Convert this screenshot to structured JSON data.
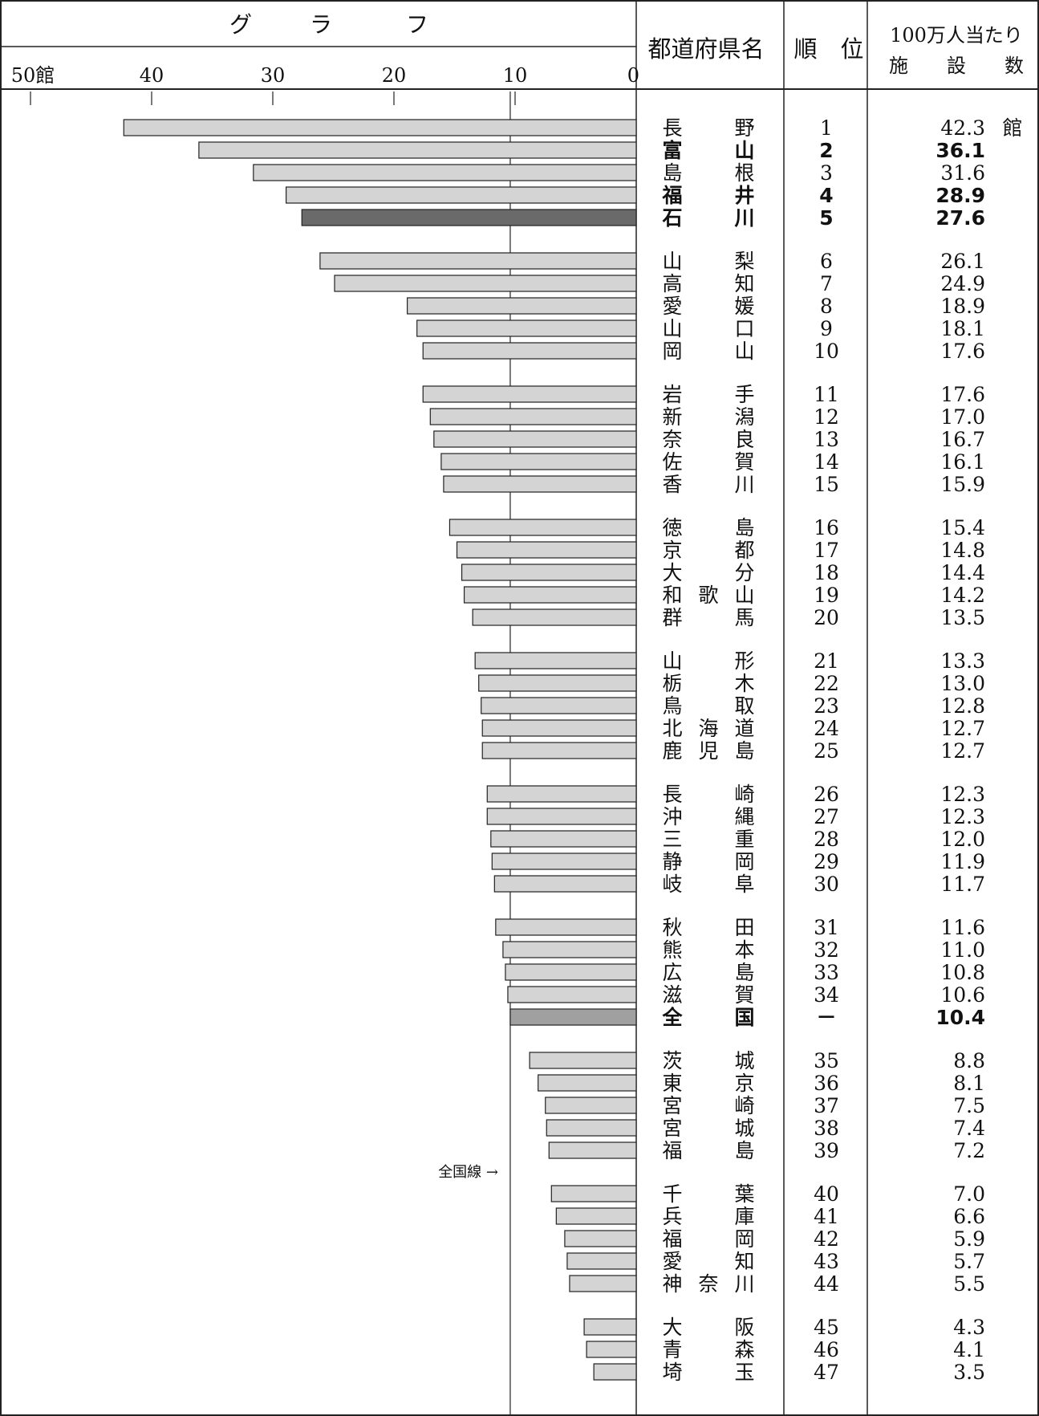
{
  "header": {
    "graph_title": [
      "グ",
      "ラ",
      "フ"
    ],
    "col_pref": "都道府県名",
    "col_rank": "順　位",
    "col_value_line1": "100万人当たり",
    "col_value_line2": "施　　設　　数",
    "unit": "館"
  },
  "chart_data": {
    "type": "bar",
    "orientation": "horizontal",
    "direction": "right-to-left",
    "xlim": [
      0,
      50
    ],
    "ticks": [
      {
        "value": 50,
        "label": "50館"
      },
      {
        "value": 40,
        "label": "40"
      },
      {
        "value": 30,
        "label": "30"
      },
      {
        "value": 20,
        "label": "20"
      },
      {
        "value": 10,
        "label": "10"
      },
      {
        "value": 0,
        "label": "0"
      }
    ],
    "reference_line": {
      "value": 10.4,
      "label": "全国線 →"
    },
    "colors": {
      "bar": "#d4d4d4",
      "highlight": "#6a6a6a",
      "national": "#a0a0a0",
      "border": "#222222"
    },
    "rows": [
      {
        "name": [
          "長",
          "",
          "野"
        ],
        "rank": "1",
        "value": 42.3,
        "value_label": "42.3",
        "bold": false,
        "style": "normal"
      },
      {
        "name": [
          "富",
          "",
          "山"
        ],
        "rank": "2",
        "value": 36.1,
        "value_label": "36.1",
        "bold": true,
        "style": "normal"
      },
      {
        "name": [
          "島",
          "",
          "根"
        ],
        "rank": "3",
        "value": 31.6,
        "value_label": "31.6",
        "bold": false,
        "style": "normal"
      },
      {
        "name": [
          "福",
          "",
          "井"
        ],
        "rank": "4",
        "value": 28.9,
        "value_label": "28.9",
        "bold": true,
        "style": "normal"
      },
      {
        "name": [
          "石",
          "",
          "川"
        ],
        "rank": "5",
        "value": 27.6,
        "value_label": "27.6",
        "bold": true,
        "style": "highlight"
      },
      {
        "name": [
          "山",
          "",
          "梨"
        ],
        "rank": "6",
        "value": 26.1,
        "value_label": "26.1",
        "bold": false,
        "style": "normal"
      },
      {
        "name": [
          "高",
          "",
          "知"
        ],
        "rank": "7",
        "value": 24.9,
        "value_label": "24.9",
        "bold": false,
        "style": "normal"
      },
      {
        "name": [
          "愛",
          "",
          "媛"
        ],
        "rank": "8",
        "value": 18.9,
        "value_label": "18.9",
        "bold": false,
        "style": "normal"
      },
      {
        "name": [
          "山",
          "",
          "口"
        ],
        "rank": "9",
        "value": 18.1,
        "value_label": "18.1",
        "bold": false,
        "style": "normal"
      },
      {
        "name": [
          "岡",
          "",
          "山"
        ],
        "rank": "10",
        "value": 17.6,
        "value_label": "17.6",
        "bold": false,
        "style": "normal"
      },
      {
        "name": [
          "岩",
          "",
          "手"
        ],
        "rank": "11",
        "value": 17.6,
        "value_label": "17.6",
        "bold": false,
        "style": "normal"
      },
      {
        "name": [
          "新",
          "",
          "潟"
        ],
        "rank": "12",
        "value": 17.0,
        "value_label": "17.0",
        "bold": false,
        "style": "normal"
      },
      {
        "name": [
          "奈",
          "",
          "良"
        ],
        "rank": "13",
        "value": 16.7,
        "value_label": "16.7",
        "bold": false,
        "style": "normal"
      },
      {
        "name": [
          "佐",
          "",
          "賀"
        ],
        "rank": "14",
        "value": 16.1,
        "value_label": "16.1",
        "bold": false,
        "style": "normal"
      },
      {
        "name": [
          "香",
          "",
          "川"
        ],
        "rank": "15",
        "value": 15.9,
        "value_label": "15.9",
        "bold": false,
        "style": "normal"
      },
      {
        "name": [
          "徳",
          "",
          "島"
        ],
        "rank": "16",
        "value": 15.4,
        "value_label": "15.4",
        "bold": false,
        "style": "normal"
      },
      {
        "name": [
          "京",
          "",
          "都"
        ],
        "rank": "17",
        "value": 14.8,
        "value_label": "14.8",
        "bold": false,
        "style": "normal"
      },
      {
        "name": [
          "大",
          "",
          "分"
        ],
        "rank": "18",
        "value": 14.4,
        "value_label": "14.4",
        "bold": false,
        "style": "normal"
      },
      {
        "name": [
          "和",
          "歌",
          "山"
        ],
        "rank": "19",
        "value": 14.2,
        "value_label": "14.2",
        "bold": false,
        "style": "normal"
      },
      {
        "name": [
          "群",
          "",
          "馬"
        ],
        "rank": "20",
        "value": 13.5,
        "value_label": "13.5",
        "bold": false,
        "style": "normal"
      },
      {
        "name": [
          "山",
          "",
          "形"
        ],
        "rank": "21",
        "value": 13.3,
        "value_label": "13.3",
        "bold": false,
        "style": "normal"
      },
      {
        "name": [
          "栃",
          "",
          "木"
        ],
        "rank": "22",
        "value": 13.0,
        "value_label": "13.0",
        "bold": false,
        "style": "normal"
      },
      {
        "name": [
          "鳥",
          "",
          "取"
        ],
        "rank": "23",
        "value": 12.8,
        "value_label": "12.8",
        "bold": false,
        "style": "normal"
      },
      {
        "name": [
          "北",
          "海",
          "道"
        ],
        "rank": "24",
        "value": 12.7,
        "value_label": "12.7",
        "bold": false,
        "style": "normal"
      },
      {
        "name": [
          "鹿",
          "児",
          "島"
        ],
        "rank": "25",
        "value": 12.7,
        "value_label": "12.7",
        "bold": false,
        "style": "normal"
      },
      {
        "name": [
          "長",
          "",
          "崎"
        ],
        "rank": "26",
        "value": 12.3,
        "value_label": "12.3",
        "bold": false,
        "style": "normal"
      },
      {
        "name": [
          "沖",
          "",
          "縄"
        ],
        "rank": "27",
        "value": 12.3,
        "value_label": "12.3",
        "bold": false,
        "style": "normal"
      },
      {
        "name": [
          "三",
          "",
          "重"
        ],
        "rank": "28",
        "value": 12.0,
        "value_label": "12.0",
        "bold": false,
        "style": "normal"
      },
      {
        "name": [
          "静",
          "",
          "岡"
        ],
        "rank": "29",
        "value": 11.9,
        "value_label": "11.9",
        "bold": false,
        "style": "normal"
      },
      {
        "name": [
          "岐",
          "",
          "阜"
        ],
        "rank": "30",
        "value": 11.7,
        "value_label": "11.7",
        "bold": false,
        "style": "normal"
      },
      {
        "name": [
          "秋",
          "",
          "田"
        ],
        "rank": "31",
        "value": 11.6,
        "value_label": "11.6",
        "bold": false,
        "style": "normal"
      },
      {
        "name": [
          "熊",
          "",
          "本"
        ],
        "rank": "32",
        "value": 11.0,
        "value_label": "11.0",
        "bold": false,
        "style": "normal"
      },
      {
        "name": [
          "広",
          "",
          "島"
        ],
        "rank": "33",
        "value": 10.8,
        "value_label": "10.8",
        "bold": false,
        "style": "normal"
      },
      {
        "name": [
          "滋",
          "",
          "賀"
        ],
        "rank": "34",
        "value": 10.6,
        "value_label": "10.6",
        "bold": false,
        "style": "normal"
      },
      {
        "name": [
          "全",
          "",
          "国"
        ],
        "rank": "－",
        "value": 10.4,
        "value_label": "10.4",
        "bold": true,
        "style": "national"
      },
      {
        "name": [
          "茨",
          "",
          "城"
        ],
        "rank": "35",
        "value": 8.8,
        "value_label": "8.8",
        "bold": false,
        "style": "normal"
      },
      {
        "name": [
          "東",
          "",
          "京"
        ],
        "rank": "36",
        "value": 8.1,
        "value_label": "8.1",
        "bold": false,
        "style": "normal"
      },
      {
        "name": [
          "宮",
          "",
          "崎"
        ],
        "rank": "37",
        "value": 7.5,
        "value_label": "7.5",
        "bold": false,
        "style": "normal"
      },
      {
        "name": [
          "宮",
          "",
          "城"
        ],
        "rank": "38",
        "value": 7.4,
        "value_label": "7.4",
        "bold": false,
        "style": "normal"
      },
      {
        "name": [
          "福",
          "",
          "島"
        ],
        "rank": "39",
        "value": 7.2,
        "value_label": "7.2",
        "bold": false,
        "style": "normal"
      },
      {
        "name": [
          "千",
          "",
          "葉"
        ],
        "rank": "40",
        "value": 7.0,
        "value_label": "7.0",
        "bold": false,
        "style": "normal"
      },
      {
        "name": [
          "兵",
          "",
          "庫"
        ],
        "rank": "41",
        "value": 6.6,
        "value_label": "6.6",
        "bold": false,
        "style": "normal"
      },
      {
        "name": [
          "福",
          "",
          "岡"
        ],
        "rank": "42",
        "value": 5.9,
        "value_label": "5.9",
        "bold": false,
        "style": "normal"
      },
      {
        "name": [
          "愛",
          "",
          "知"
        ],
        "rank": "43",
        "value": 5.7,
        "value_label": "5.7",
        "bold": false,
        "style": "normal"
      },
      {
        "name": [
          "神",
          "奈",
          "川"
        ],
        "rank": "44",
        "value": 5.5,
        "value_label": "5.5",
        "bold": false,
        "style": "normal"
      },
      {
        "name": [
          "大",
          "",
          "阪"
        ],
        "rank": "45",
        "value": 4.3,
        "value_label": "4.3",
        "bold": false,
        "style": "normal"
      },
      {
        "name": [
          "青",
          "",
          "森"
        ],
        "rank": "46",
        "value": 4.1,
        "value_label": "4.1",
        "bold": false,
        "style": "normal"
      },
      {
        "name": [
          "埼",
          "",
          "玉"
        ],
        "rank": "47",
        "value": 3.5,
        "value_label": "3.5",
        "bold": false,
        "style": "normal"
      }
    ]
  }
}
